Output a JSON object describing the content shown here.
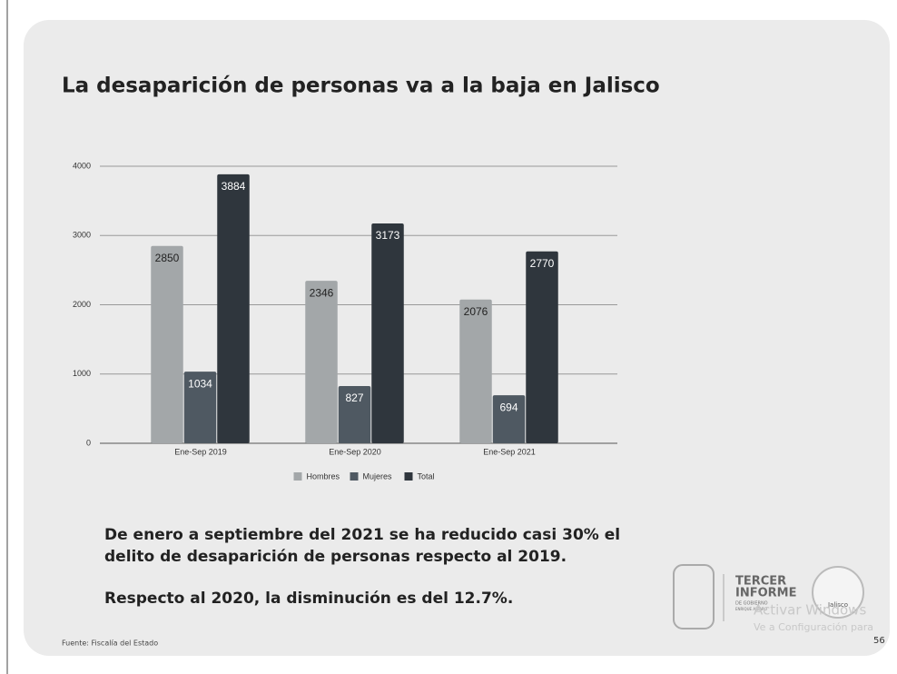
{
  "chart_data": {
    "type": "bar",
    "title": "La desaparición de personas va a la baja en Jalisco",
    "categories": [
      "Ene-Sep 2019",
      "Ene-Sep 2020",
      "Ene-Sep 2021"
    ],
    "series": [
      {
        "name": "Hombres",
        "color": "#a3a7a9",
        "label_color": "#222222",
        "values": [
          2850,
          2346,
          2076
        ]
      },
      {
        "name": "Mujeres",
        "color": "#4f5962",
        "label_color": "#ffffff",
        "values": [
          1034,
          827,
          694
        ]
      },
      {
        "name": "Total",
        "color": "#2f363d",
        "label_color": "#ffffff",
        "values": [
          3884,
          3173,
          2770
        ]
      }
    ],
    "ylim": [
      0,
      4000
    ],
    "yticks": [
      0,
      1000,
      2000,
      3000,
      4000
    ],
    "grid": true,
    "legend": "bottom"
  },
  "notes": [
    "De enero a septiembre del 2021 se ha reducido casi 30% el",
    "delito de desaparición de personas respecto al 2019.",
    "Respecto al 2020, la disminución es del 12.7%."
  ],
  "source": "Fuente: Fiscalía del Estado",
  "page_number": "56",
  "logo": [
    "TERCER",
    "INFORME",
    "DE GOBIERNO",
    "ENRIQUE ALFARO",
    "Jalisco"
  ],
  "watermark": [
    "Activar Windows",
    "Ve a Configuración para"
  ]
}
